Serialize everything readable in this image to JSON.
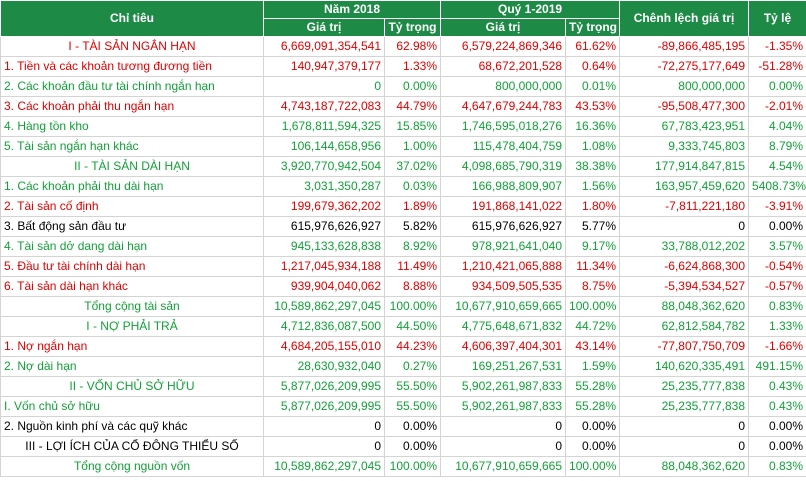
{
  "headers": {
    "chi_tieu": "Chỉ tiêu",
    "nam_2018": "Năm 2018",
    "quy_1_2019": "Quý 1-2019",
    "chenh_lech": "Chênh lệch giá trị",
    "ty_le": "Tỷ lệ",
    "gia_tri": "Giá trị",
    "ty_trong": "Tỷ trọng"
  },
  "colors": {
    "header_bg": "#1d8a46",
    "red": "#e00000",
    "green": "#12a038",
    "black": "#000000"
  },
  "rows": [
    {
      "label": "I - TÀI SẢN NGẮN HẠN",
      "v2018": "6,669,091,354,541",
      "t2018": "62.98%",
      "v2019": "6,579,224,869,346",
      "t2019": "61.62%",
      "diff": "-89,866,485,195",
      "rate": "-1.35%",
      "color": "red",
      "align": "center"
    },
    {
      "label": "1. Tiền và các khoản tương đương tiền",
      "v2018": "140,947,379,177",
      "t2018": "1.33%",
      "v2019": "68,672,201,528",
      "t2019": "0.64%",
      "diff": "-72,275,177,649",
      "rate": "-51.28%",
      "color": "red",
      "align": "left"
    },
    {
      "label": "2. Các khoản đầu tư tài chính ngắn hạn",
      "v2018": "0",
      "t2018": "0.00%",
      "v2019": "800,000,000",
      "t2019": "0.01%",
      "diff": "800,000,000",
      "rate": "0.00%",
      "color": "green",
      "align": "left"
    },
    {
      "label": "3. Các khoản phải thu ngắn hạn",
      "v2018": "4,743,187,722,083",
      "t2018": "44.79%",
      "v2019": "4,647,679,244,783",
      "t2019": "43.53%",
      "diff": "-95,508,477,300",
      "rate": "-2.01%",
      "color": "red",
      "align": "left"
    },
    {
      "label": "4. Hàng tồn kho",
      "v2018": "1,678,811,594,325",
      "t2018": "15.85%",
      "v2019": "1,746,595,018,276",
      "t2019": "16.36%",
      "diff": "67,783,423,951",
      "rate": "4.04%",
      "color": "green",
      "align": "left"
    },
    {
      "label": "5. Tài sản ngắn hạn khác",
      "v2018": "106,144,658,956",
      "t2018": "1.00%",
      "v2019": "115,478,404,759",
      "t2019": "1.08%",
      "diff": "9,333,745,803",
      "rate": "8.79%",
      "color": "green",
      "align": "left"
    },
    {
      "label": "II - TÀI SẢN DÀI HẠN",
      "v2018": "3,920,770,942,504",
      "t2018": "37.02%",
      "v2019": "4,098,685,790,319",
      "t2019": "38.38%",
      "diff": "177,914,847,815",
      "rate": "4.54%",
      "color": "green",
      "align": "center"
    },
    {
      "label": "1. Các khoản phải thu dài hạn",
      "v2018": "3,031,350,287",
      "t2018": "0.03%",
      "v2019": "166,988,809,907",
      "t2019": "1.56%",
      "diff": "163,957,459,620",
      "rate": "5408.73%",
      "color": "green",
      "align": "left"
    },
    {
      "label": "2. Tài sản cố định",
      "v2018": "199,679,362,202",
      "t2018": "1.89%",
      "v2019": "191,868,141,022",
      "t2019": "1.80%",
      "diff": "-7,811,221,180",
      "rate": "-3.91%",
      "color": "red",
      "align": "left"
    },
    {
      "label": "3. Bất động sản đầu tư",
      "v2018": "615,976,626,927",
      "t2018": "5.82%",
      "v2019": "615,976,626,927",
      "t2019": "5.77%",
      "diff": "0",
      "rate": "0.00%",
      "color": "black",
      "align": "left"
    },
    {
      "label": "4. Tài sản dở dang dài hạn",
      "v2018": "945,133,628,838",
      "t2018": "8.92%",
      "v2019": "978,921,641,040",
      "t2019": "9.17%",
      "diff": "33,788,012,202",
      "rate": "3.57%",
      "color": "green",
      "align": "left"
    },
    {
      "label": "5. Đầu tư tài chính dài hạn",
      "v2018": "1,217,045,934,188",
      "t2018": "11.49%",
      "v2019": "1,210,421,065,888",
      "t2019": "11.34%",
      "diff": "-6,624,868,300",
      "rate": "-0.54%",
      "color": "red",
      "align": "left"
    },
    {
      "label": "6. Tài sản dài hạn khác",
      "v2018": "939,904,040,062",
      "t2018": "8.88%",
      "v2019": "934,509,505,535",
      "t2019": "8.75%",
      "diff": "-5,394,534,527",
      "rate": "-0.57%",
      "color": "red",
      "align": "left"
    },
    {
      "label": "Tổng cộng tài sản",
      "v2018": "10,589,862,297,045",
      "t2018": "100.00%",
      "v2019": "10,677,910,659,665",
      "t2019": "100.00%",
      "diff": "88,048,362,620",
      "rate": "0.83%",
      "color": "green",
      "align": "center"
    },
    {
      "label": "I - NỢ PHẢI TRẢ",
      "v2018": "4,712,836,087,500",
      "t2018": "44.50%",
      "v2019": "4,775,648,671,832",
      "t2019": "44.72%",
      "diff": "62,812,584,782",
      "rate": "1.33%",
      "color": "green",
      "align": "center"
    },
    {
      "label": "1. Nợ ngắn hạn",
      "v2018": "4,684,205,155,010",
      "t2018": "44.23%",
      "v2019": "4,606,397,404,301",
      "t2019": "43.14%",
      "diff": "-77,807,750,709",
      "rate": "-1.66%",
      "color": "red",
      "align": "left"
    },
    {
      "label": "2. Nợ dài hạn",
      "v2018": "28,630,932,040",
      "t2018": "0.27%",
      "v2019": "169,251,267,531",
      "t2019": "1.59%",
      "diff": "140,620,335,491",
      "rate": "491.15%",
      "color": "green",
      "align": "left"
    },
    {
      "label": "II - VỐN CHỦ SỞ HỮU",
      "v2018": "5,877,026,209,995",
      "t2018": "55.50%",
      "v2019": "5,902,261,987,833",
      "t2019": "55.28%",
      "diff": "25,235,777,838",
      "rate": "0.43%",
      "color": "green",
      "align": "center"
    },
    {
      "label": "I. Vốn chủ sở hữu",
      "v2018": "5,877,026,209,995",
      "t2018": "55.50%",
      "v2019": "5,902,261,987,833",
      "t2019": "55.28%",
      "diff": "25,235,777,838",
      "rate": "0.43%",
      "color": "green",
      "align": "left"
    },
    {
      "label": "2. Nguồn kinh phí và các quỹ khác",
      "v2018": "0",
      "t2018": "0.00%",
      "v2019": "0",
      "t2019": "0.00%",
      "diff": "0",
      "rate": "0.00%",
      "color": "black",
      "align": "left"
    },
    {
      "label": "III - LỢI ÍCH CỦA CỔ ĐÔNG THIỂU SỐ",
      "v2018": "0",
      "t2018": "0.00%",
      "v2019": "0",
      "t2019": "0.00%",
      "diff": "0",
      "rate": "0.00%",
      "color": "black",
      "align": "center"
    },
    {
      "label": "Tổng cộng nguồn vốn",
      "v2018": "10,589,862,297,045",
      "t2018": "100.00%",
      "v2019": "10,677,910,659,665",
      "t2019": "100.00%",
      "diff": "88,048,362,620",
      "rate": "0.83%",
      "color": "green",
      "align": "center"
    }
  ]
}
